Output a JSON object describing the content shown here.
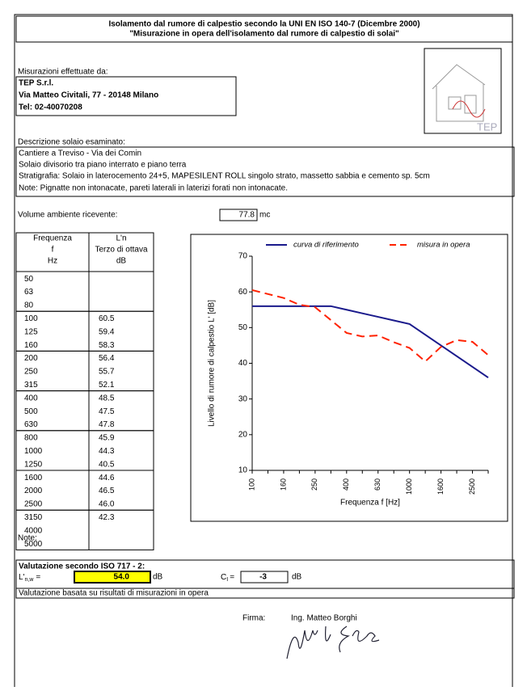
{
  "header": {
    "title_line1": "Isolamento dal rumore di calpestio secondo la UNI EN ISO 140-7 (Dicembre 2000)",
    "title_line2": "\"Misurazione in opera dell'isolamento dal rumore di calpestio di solai\""
  },
  "measured_by": {
    "label": "Misurazioni effettuate da:",
    "lines": [
      "TEP S.r.l.",
      "Via Matteo Civitali, 77 - 20148 Milano",
      "Tel: 02-40070208"
    ]
  },
  "logo": {
    "text": "TEP"
  },
  "description": {
    "label": "Descrizione solaio esaminato:",
    "lines": [
      "Cantiere a Treviso - Via dei Comin",
      "Solaio divisorio tra piano interrato e piano terra",
      "Stratigrafia: Solaio in laterocemento 24+5, MAPESILENT ROLL singolo strato, massetto sabbia e cemento sp. 5cm",
      "Note: Pignatte non intonacate, pareti laterali in laterizi forati non intonacate."
    ]
  },
  "volume": {
    "label": "Volume ambiente ricevente:",
    "value": "77.8",
    "unit": "mc"
  },
  "table": {
    "headers": [
      [
        "Frequenza",
        "f",
        "Hz"
      ],
      [
        "L'n",
        "Terzo di ottava",
        "dB"
      ]
    ],
    "rows": [
      [
        "50"
      ],
      [
        "63"
      ],
      [
        "80"
      ],
      [
        "100",
        "60.5"
      ],
      [
        "125",
        "59.4"
      ],
      [
        "160",
        "58.3"
      ],
      [
        "200",
        "56.4"
      ],
      [
        "250",
        "55.7"
      ],
      [
        "315",
        "52.1"
      ],
      [
        "400",
        "48.5"
      ],
      [
        "500",
        "47.5"
      ],
      [
        "630",
        "47.8"
      ],
      [
        "800",
        "45.9"
      ],
      [
        "1000",
        "44.3"
      ],
      [
        "1250",
        "40.5"
      ],
      [
        "1600",
        "44.6"
      ],
      [
        "2000",
        "46.5"
      ],
      [
        "2500",
        "46.0"
      ],
      [
        "3150",
        "42.3"
      ],
      [
        "4000"
      ],
      [
        "5000"
      ]
    ]
  },
  "chart_data": {
    "type": "line",
    "y_label": "Livello di rumore di calpestio L' [dB]",
    "x_label": "Frequenza f [Hz]",
    "categories": [
      "100",
      null,
      "160",
      null,
      "250",
      null,
      "400",
      null,
      "630",
      null,
      "1000",
      null,
      "1600",
      null,
      "2500",
      null
    ],
    "series": [
      {
        "name": "curva di riferimento",
        "color": "#1a1a8c",
        "style": "solid",
        "values": [
          56,
          56,
          56,
          56,
          56,
          56,
          55,
          54,
          53,
          52,
          51,
          48,
          45,
          42,
          39,
          36
        ]
      },
      {
        "name": "misura in opera",
        "color": "#ff2200",
        "style": "dashed",
        "values": [
          60.5,
          59.4,
          58.3,
          56.4,
          55.7,
          52.1,
          48.5,
          47.5,
          47.8,
          45.9,
          44.3,
          40.5,
          44.6,
          46.5,
          46.0,
          42.3
        ]
      }
    ],
    "ylim": [
      10,
      70
    ],
    "yticks": [
      10,
      20,
      30,
      40,
      50,
      60,
      70
    ],
    "grid": false,
    "legend": "top"
  },
  "notes": {
    "label": "Note:"
  },
  "evaluation": {
    "title": "Valutazione secondo ISO 717 - 2:",
    "lnw_label": "L'",
    "lnw_sub": "n,w",
    "lnw_eq": "=",
    "lnw_value": "54.0",
    "lnw_unit": "dB",
    "ci_label": "C",
    "ci_sub": "I",
    "ci_eq": "=",
    "ci_value": "-3",
    "ci_unit": "dB",
    "footer": "Valutazione basata su risultati di misurazioni in opera"
  },
  "signature": {
    "label": "Firma:",
    "name": "Ing. Matteo Borghi"
  }
}
